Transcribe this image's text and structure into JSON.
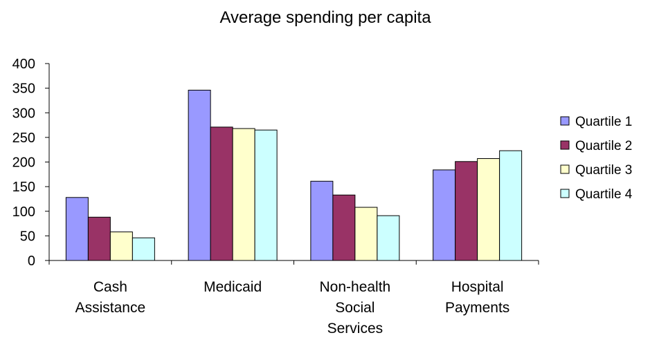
{
  "chart_data": {
    "type": "bar",
    "title": "Average spending per capita",
    "xlabel": "",
    "ylabel": "",
    "ylim": [
      0,
      400
    ],
    "yticks": [
      0,
      50,
      100,
      150,
      200,
      250,
      300,
      350,
      400
    ],
    "grid": false,
    "legend_position": "right",
    "categories": [
      [
        "Cash",
        "Assistance"
      ],
      [
        "Medicaid"
      ],
      [
        "Non-health",
        "Social",
        "Services"
      ],
      [
        "Hospital",
        "Payments"
      ]
    ],
    "series": [
      {
        "name": "Quartile 1",
        "color": "#9999ff",
        "values": [
          128,
          346,
          161,
          184
        ]
      },
      {
        "name": "Quartile 2",
        "color": "#993366",
        "values": [
          88,
          271,
          133,
          201
        ]
      },
      {
        "name": "Quartile 3",
        "color": "#ffffcc",
        "values": [
          58,
          268,
          108,
          207
        ]
      },
      {
        "name": "Quartile 4",
        "color": "#ccffff",
        "values": [
          46,
          265,
          91,
          223
        ]
      }
    ]
  }
}
